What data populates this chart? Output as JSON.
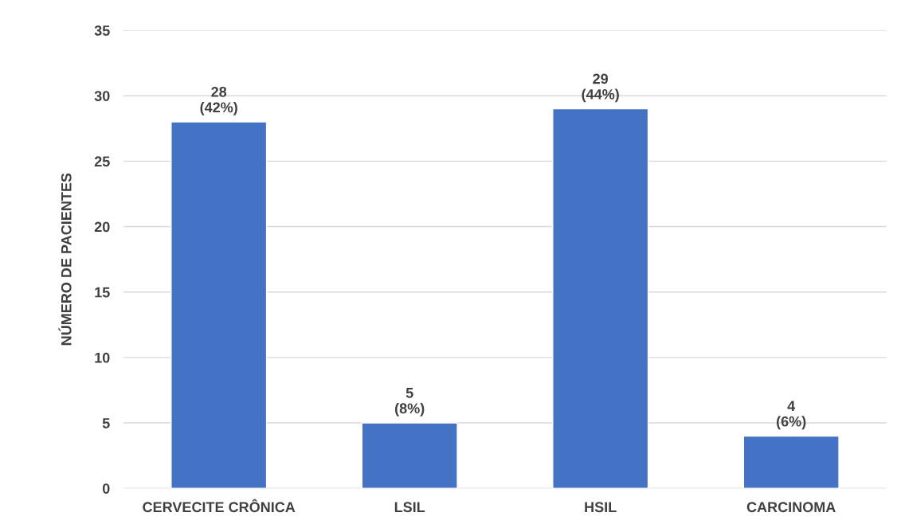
{
  "chart_data": {
    "type": "bar",
    "ylabel": "NÚMERO DE PACIENTES",
    "categories": [
      "CERVECITE CRÔNICA",
      "LSIL",
      "HSIL",
      "CARCINOMA"
    ],
    "values": [
      28,
      5,
      29,
      4
    ],
    "value_labels": [
      "28\n(42%)",
      "5\n(8%)",
      "29\n(44%)",
      "4\n(6%)"
    ],
    "color": "#4472c4",
    "ylim": [
      0,
      35
    ],
    "yticks": [
      0,
      5,
      10,
      15,
      20,
      25,
      30,
      35
    ],
    "grid": "y",
    "legend": false
  }
}
